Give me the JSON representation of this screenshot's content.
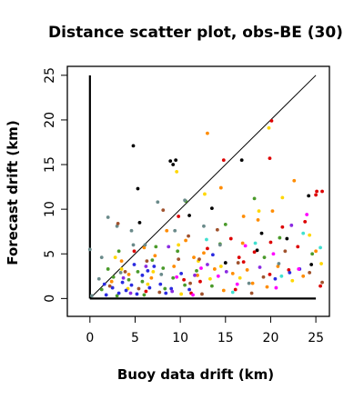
{
  "chart_data": {
    "type": "scatter",
    "title": "Distance scatter plot, obs-BE (30)",
    "xlabel": "Buoy data drift (km)",
    "ylabel": "Forecast drift (km)",
    "xlim": [
      -2.5,
      26.5
    ],
    "ylim": [
      -2,
      26
    ],
    "xticks": [
      "0",
      "5",
      "10",
      "15",
      "20",
      "25"
    ],
    "yticks": [
      "0",
      "5",
      "10",
      "15",
      "20",
      "25"
    ],
    "grid": false,
    "legend": "none",
    "reference_line": {
      "from": [
        0,
        0
      ],
      "to": [
        25,
        25
      ],
      "color": "#000000"
    },
    "axis_lines": [
      {
        "from": [
          0,
          0
        ],
        "to": [
          0,
          25
        ],
        "color": "#000000"
      },
      {
        "from": [
          0,
          0
        ],
        "to": [
          25,
          0
        ],
        "color": "#000000"
      }
    ],
    "points": [
      {
        "x": 4.8,
        "y": 17.1,
        "c": "#000000"
      },
      {
        "x": 8.9,
        "y": 15.4,
        "c": "#000000"
      },
      {
        "x": 9.5,
        "y": 15.5,
        "c": "#000000"
      },
      {
        "x": 9.2,
        "y": 15.0,
        "c": "#000000"
      },
      {
        "x": 5.3,
        "y": 12.3,
        "c": "#000000"
      },
      {
        "x": 16.8,
        "y": 15.5,
        "c": "#000000"
      },
      {
        "x": 24.2,
        "y": 11.5,
        "c": "#000000"
      },
      {
        "x": 19.0,
        "y": 7.3,
        "c": "#000000"
      },
      {
        "x": 21.8,
        "y": 6.7,
        "c": "#000000"
      },
      {
        "x": 5.5,
        "y": 8.5,
        "c": "#000000"
      },
      {
        "x": 11.0,
        "y": 9.3,
        "c": "#000000"
      },
      {
        "x": 24.5,
        "y": 3.8,
        "c": "#000000"
      },
      {
        "x": 13.5,
        "y": 10.1,
        "c": "#000000"
      },
      {
        "x": 15.0,
        "y": 4.0,
        "c": "#000000"
      },
      {
        "x": 18.5,
        "y": 5.4,
        "c": "#000000"
      },
      {
        "x": 20.0,
        "y": 6.3,
        "c": "#dd0000"
      },
      {
        "x": 19.9,
        "y": 15.7,
        "c": "#dd0000"
      },
      {
        "x": 20.1,
        "y": 19.9,
        "c": "#dd0000"
      },
      {
        "x": 14.8,
        "y": 15.5,
        "c": "#dd0000"
      },
      {
        "x": 25.1,
        "y": 12.0,
        "c": "#dd0000"
      },
      {
        "x": 25.7,
        "y": 12.0,
        "c": "#dd0000"
      },
      {
        "x": 25.0,
        "y": 11.6,
        "c": "#dd0000"
      },
      {
        "x": 21.3,
        "y": 8.0,
        "c": "#dd0000"
      },
      {
        "x": 23.0,
        "y": 5.8,
        "c": "#dd0000"
      },
      {
        "x": 19.9,
        "y": 2.7,
        "c": "#dd0000"
      },
      {
        "x": 16.5,
        "y": 4.6,
        "c": "#dd0000"
      },
      {
        "x": 18.2,
        "y": 5.2,
        "c": "#dd0000"
      },
      {
        "x": 15.6,
        "y": 6.7,
        "c": "#dd0000"
      },
      {
        "x": 17.0,
        "y": 4.1,
        "c": "#dd0000"
      },
      {
        "x": 10.4,
        "y": 2.1,
        "c": "#dd0000"
      },
      {
        "x": 11.2,
        "y": 0.6,
        "c": "#dd0000"
      },
      {
        "x": 12.2,
        "y": 1.9,
        "c": "#dd0000"
      },
      {
        "x": 16.1,
        "y": 1.0,
        "c": "#dd0000"
      },
      {
        "x": 25.5,
        "y": 1.4,
        "c": "#dd0000"
      },
      {
        "x": 22.0,
        "y": 3.2,
        "c": "#dd0000"
      },
      {
        "x": 9.8,
        "y": 9.2,
        "c": "#dd0000"
      },
      {
        "x": 4.9,
        "y": 5.3,
        "c": "#dd0000"
      },
      {
        "x": 6.2,
        "y": 0.8,
        "c": "#dd0000"
      },
      {
        "x": 23.8,
        "y": 8.6,
        "c": "#dd0000"
      },
      {
        "x": 13.0,
        "y": 5.6,
        "c": "#dd0000"
      },
      {
        "x": 17.0,
        "y": 9.2,
        "c": "#ff8c00"
      },
      {
        "x": 13.0,
        "y": 18.5,
        "c": "#ff8c00"
      },
      {
        "x": 22.6,
        "y": 13.2,
        "c": "#ff8c00"
      },
      {
        "x": 14.5,
        "y": 12.4,
        "c": "#ff8c00"
      },
      {
        "x": 20.2,
        "y": 9.8,
        "c": "#ff8c00"
      },
      {
        "x": 18.6,
        "y": 8.8,
        "c": "#ff8c00"
      },
      {
        "x": 8.5,
        "y": 7.6,
        "c": "#ff8c00"
      },
      {
        "x": 10.6,
        "y": 6.5,
        "c": "#ff8c00"
      },
      {
        "x": 11.5,
        "y": 4.6,
        "c": "#ff8c00"
      },
      {
        "x": 12.6,
        "y": 5.1,
        "c": "#ff8c00"
      },
      {
        "x": 6.0,
        "y": 5.7,
        "c": "#ff8c00"
      },
      {
        "x": 3.5,
        "y": 4.2,
        "c": "#ff8c00"
      },
      {
        "x": 7.2,
        "y": 4.8,
        "c": "#ff8c00"
      },
      {
        "x": 13.8,
        "y": 3.3,
        "c": "#ff8c00"
      },
      {
        "x": 15.8,
        "y": 2.8,
        "c": "#ff8c00"
      },
      {
        "x": 18.0,
        "y": 1.7,
        "c": "#ff8c00"
      },
      {
        "x": 20.8,
        "y": 3.6,
        "c": "#ff8c00"
      },
      {
        "x": 23.6,
        "y": 2.5,
        "c": "#ff8c00"
      },
      {
        "x": 2.4,
        "y": 1.9,
        "c": "#ff8c00"
      },
      {
        "x": 4.3,
        "y": 2.7,
        "c": "#ff8c00"
      },
      {
        "x": 9.3,
        "y": 3.6,
        "c": "#ff8c00"
      },
      {
        "x": 11.9,
        "y": 2.6,
        "c": "#ff8c00"
      },
      {
        "x": 16.9,
        "y": 6.2,
        "c": "#ff8c00"
      },
      {
        "x": 25.0,
        "y": 5.3,
        "c": "#ff8c00"
      },
      {
        "x": 14.8,
        "y": 0.9,
        "c": "#ff8c00"
      },
      {
        "x": 17.4,
        "y": 3.2,
        "c": "#ff8c00"
      },
      {
        "x": 6.8,
        "y": 2.3,
        "c": "#ff8c00"
      },
      {
        "x": 19.6,
        "y": 1.3,
        "c": "#ff8c00"
      },
      {
        "x": 9.6,
        "y": 14.2,
        "c": "#ffd700"
      },
      {
        "x": 12.7,
        "y": 11.7,
        "c": "#ffd700"
      },
      {
        "x": 21.3,
        "y": 11.3,
        "c": "#ffd700"
      },
      {
        "x": 19.8,
        "y": 19.1,
        "c": "#ffd700"
      },
      {
        "x": 18.7,
        "y": 9.8,
        "c": "#ffd700"
      },
      {
        "x": 9.8,
        "y": 6.0,
        "c": "#ffd700"
      },
      {
        "x": 14.5,
        "y": 3.6,
        "c": "#ffd700"
      },
      {
        "x": 7.0,
        "y": 3.0,
        "c": "#ffd700"
      },
      {
        "x": 4.2,
        "y": 1.1,
        "c": "#ffd700"
      },
      {
        "x": 13.3,
        "y": 2.2,
        "c": "#ffd700"
      },
      {
        "x": 10.1,
        "y": 0.5,
        "c": "#ffd700"
      },
      {
        "x": 16.6,
        "y": 2.3,
        "c": "#ffd700"
      },
      {
        "x": 2.8,
        "y": 4.6,
        "c": "#ffd700"
      },
      {
        "x": 22.4,
        "y": 2.0,
        "c": "#ffd700"
      },
      {
        "x": 25.6,
        "y": 3.9,
        "c": "#ffd700"
      },
      {
        "x": 6.4,
        "y": 1.6,
        "c": "#ffd700"
      },
      {
        "x": 12.0,
        "y": 4.2,
        "c": "#ffd700"
      },
      {
        "x": 24.3,
        "y": 7.1,
        "c": "#ffd700"
      },
      {
        "x": 3.5,
        "y": 3.3,
        "c": "#ffd700"
      },
      {
        "x": 8.1,
        "y": 3.4,
        "c": "#4a9a2a"
      },
      {
        "x": 10.6,
        "y": 10.9,
        "c": "#4a9a2a"
      },
      {
        "x": 15.0,
        "y": 8.3,
        "c": "#4a9a2a"
      },
      {
        "x": 18.2,
        "y": 11.2,
        "c": "#4a9a2a"
      },
      {
        "x": 9.7,
        "y": 5.3,
        "c": "#4a9a2a"
      },
      {
        "x": 2.0,
        "y": 3.3,
        "c": "#4a9a2a"
      },
      {
        "x": 3.2,
        "y": 5.3,
        "c": "#4a9a2a"
      },
      {
        "x": 5.3,
        "y": 3.0,
        "c": "#4a9a2a"
      },
      {
        "x": 6.9,
        "y": 4.3,
        "c": "#4a9a2a"
      },
      {
        "x": 8.3,
        "y": 1.1,
        "c": "#4a9a2a"
      },
      {
        "x": 4.3,
        "y": 2.1,
        "c": "#4a9a2a"
      },
      {
        "x": 1.3,
        "y": 1.0,
        "c": "#4a9a2a"
      },
      {
        "x": 11.8,
        "y": 3.1,
        "c": "#4a9a2a"
      },
      {
        "x": 13.5,
        "y": 1.4,
        "c": "#4a9a2a"
      },
      {
        "x": 3.0,
        "y": 0.3,
        "c": "#4a9a2a"
      },
      {
        "x": 6.0,
        "y": 0.4,
        "c": "#4a9a2a"
      },
      {
        "x": 9.2,
        "y": 2.3,
        "c": "#4a9a2a"
      },
      {
        "x": 14.4,
        "y": 6.1,
        "c": "#4a9a2a"
      },
      {
        "x": 19.3,
        "y": 4.6,
        "c": "#4a9a2a"
      },
      {
        "x": 21.0,
        "y": 6.8,
        "c": "#4a9a2a"
      },
      {
        "x": 24.6,
        "y": 5.0,
        "c": "#4a9a2a"
      },
      {
        "x": 7.3,
        "y": 5.8,
        "c": "#4a9a2a"
      },
      {
        "x": 2.6,
        "y": 2.4,
        "c": "#4a9a2a"
      },
      {
        "x": 5.8,
        "y": 1.9,
        "c": "#4a9a2a"
      },
      {
        "x": 10.5,
        "y": 1.5,
        "c": "#4a9a2a"
      },
      {
        "x": 4.9,
        "y": 3.8,
        "c": "#2a2ae0"
      },
      {
        "x": 5.8,
        "y": 2.6,
        "c": "#2a2ae0"
      },
      {
        "x": 7.1,
        "y": 3.6,
        "c": "#2a2ae0"
      },
      {
        "x": 3.2,
        "y": 0.6,
        "c": "#2a2ae0"
      },
      {
        "x": 4.0,
        "y": 0.9,
        "c": "#2a2ae0"
      },
      {
        "x": 2.5,
        "y": 1.2,
        "c": "#2a2ae0"
      },
      {
        "x": 7.8,
        "y": 1.6,
        "c": "#2a2ae0"
      },
      {
        "x": 9.0,
        "y": 1.1,
        "c": "#2a2ae0"
      },
      {
        "x": 6.4,
        "y": 3.1,
        "c": "#2a2ae0"
      },
      {
        "x": 4.6,
        "y": 1.5,
        "c": "#2a2ae0"
      },
      {
        "x": 1.8,
        "y": 0.4,
        "c": "#2a2ae0"
      },
      {
        "x": 5.2,
        "y": 0.5,
        "c": "#2a2ae0"
      },
      {
        "x": 8.4,
        "y": 0.6,
        "c": "#2a2ae0"
      },
      {
        "x": 10.1,
        "y": 2.8,
        "c": "#2a2ae0"
      },
      {
        "x": 11.0,
        "y": 1.0,
        "c": "#2a2ae0"
      },
      {
        "x": 3.6,
        "y": 1.8,
        "c": "#2a2ae0"
      },
      {
        "x": 6.6,
        "y": 1.2,
        "c": "#2a2ae0"
      },
      {
        "x": 13.6,
        "y": 4.9,
        "c": "#2a2ae0"
      },
      {
        "x": 20.5,
        "y": 2.2,
        "c": "#2a2ae0"
      },
      {
        "x": 23.2,
        "y": 3.3,
        "c": "#2a2ae0"
      },
      {
        "x": 22.1,
        "y": 2.9,
        "c": "#2a2ae0"
      },
      {
        "x": 1.6,
        "y": 1.6,
        "c": "#2a2ae0"
      },
      {
        "x": 2.0,
        "y": 9.1,
        "c": "#6a8a8a"
      },
      {
        "x": 3.0,
        "y": 8.1,
        "c": "#6a8a8a"
      },
      {
        "x": 4.6,
        "y": 7.6,
        "c": "#6a8a8a"
      },
      {
        "x": 4.8,
        "y": 6.0,
        "c": "#6a8a8a"
      },
      {
        "x": 7.5,
        "y": 10.8,
        "c": "#6a8a8a"
      },
      {
        "x": 10.5,
        "y": 11.0,
        "c": "#6a8a8a"
      },
      {
        "x": 12.6,
        "y": 8.1,
        "c": "#6a8a8a"
      },
      {
        "x": 0.0,
        "y": 5.5,
        "c": "#6a8a8a"
      },
      {
        "x": 1.3,
        "y": 4.6,
        "c": "#6a8a8a"
      },
      {
        "x": 3.4,
        "y": 2.9,
        "c": "#6a8a8a"
      },
      {
        "x": 6.1,
        "y": 6.0,
        "c": "#6a8a8a"
      },
      {
        "x": 9.4,
        "y": 7.6,
        "c": "#6a8a8a"
      },
      {
        "x": 14.4,
        "y": 6.0,
        "c": "#6a8a8a"
      },
      {
        "x": 17.6,
        "y": 1.7,
        "c": "#6a8a8a"
      },
      {
        "x": 20.9,
        "y": 3.9,
        "c": "#6a8a8a"
      },
      {
        "x": 1.0,
        "y": 2.2,
        "c": "#6a8a8a"
      },
      {
        "x": 7.9,
        "y": 2.7,
        "c": "#6a8a8a"
      },
      {
        "x": 0.2,
        "y": 0.3,
        "c": "#6a8a8a"
      },
      {
        "x": 3.1,
        "y": 8.4,
        "c": "#a0522d"
      },
      {
        "x": 8.1,
        "y": 9.9,
        "c": "#a0522d"
      },
      {
        "x": 10.9,
        "y": 7.0,
        "c": "#a0522d"
      },
      {
        "x": 12.1,
        "y": 4.4,
        "c": "#a0522d"
      },
      {
        "x": 14.1,
        "y": 7.7,
        "c": "#a0522d"
      },
      {
        "x": 6.3,
        "y": 4.2,
        "c": "#a0522d"
      },
      {
        "x": 3.9,
        "y": 3.0,
        "c": "#a0522d"
      },
      {
        "x": 2.2,
        "y": 1.4,
        "c": "#a0522d"
      },
      {
        "x": 5.4,
        "y": 1.1,
        "c": "#a0522d"
      },
      {
        "x": 9.8,
        "y": 4.4,
        "c": "#a0522d"
      },
      {
        "x": 16.4,
        "y": 4.0,
        "c": "#a0522d"
      },
      {
        "x": 19.2,
        "y": 2.4,
        "c": "#a0522d"
      },
      {
        "x": 21.6,
        "y": 5.3,
        "c": "#a0522d"
      },
      {
        "x": 24.3,
        "y": 2.9,
        "c": "#a0522d"
      },
      {
        "x": 25.7,
        "y": 1.8,
        "c": "#a0522d"
      },
      {
        "x": 11.1,
        "y": 1.7,
        "c": "#a0522d"
      },
      {
        "x": 7.7,
        "y": 0.7,
        "c": "#a0522d"
      },
      {
        "x": 12.4,
        "y": 0.5,
        "c": "#a0522d"
      },
      {
        "x": 17.9,
        "y": 0.6,
        "c": "#a0522d"
      },
      {
        "x": 8.7,
        "y": 5.8,
        "c": "#8a2be2"
      },
      {
        "x": 11.6,
        "y": 2.6,
        "c": "#8a2be2"
      },
      {
        "x": 15.1,
        "y": 3.0,
        "c": "#8a2be2"
      },
      {
        "x": 6.2,
        "y": 3.6,
        "c": "#8a2be2"
      },
      {
        "x": 4.5,
        "y": 0.6,
        "c": "#8a2be2"
      },
      {
        "x": 3.7,
        "y": 2.3,
        "c": "#8a2be2"
      },
      {
        "x": 18.8,
        "y": 3.5,
        "c": "#8a2be2"
      },
      {
        "x": 22.3,
        "y": 8.2,
        "c": "#8a2be2"
      },
      {
        "x": 9.1,
        "y": 0.8,
        "c": "#8a2be2"
      },
      {
        "x": 13.0,
        "y": 3.8,
        "c": "#8a2be2"
      },
      {
        "x": 24.0,
        "y": 9.4,
        "c": "#ff00ff"
      },
      {
        "x": 17.2,
        "y": 5.9,
        "c": "#ff00ff"
      },
      {
        "x": 20.3,
        "y": 5.0,
        "c": "#ff00ff"
      },
      {
        "x": 23.1,
        "y": 3.3,
        "c": "#ff00ff"
      },
      {
        "x": 12.3,
        "y": 3.4,
        "c": "#ff00ff"
      },
      {
        "x": 9.6,
        "y": 2.4,
        "c": "#ff00ff"
      },
      {
        "x": 16.3,
        "y": 1.6,
        "c": "#ff00ff"
      },
      {
        "x": 11.4,
        "y": 0.4,
        "c": "#ff00ff"
      },
      {
        "x": 20.6,
        "y": 1.2,
        "c": "#ff00ff"
      },
      {
        "x": 14.2,
        "y": 2.5,
        "c": "#ff00ff"
      },
      {
        "x": 23.6,
        "y": 7.3,
        "c": "#40e0d0"
      },
      {
        "x": 25.5,
        "y": 5.7,
        "c": "#40e0d0"
      },
      {
        "x": 18.3,
        "y": 6.2,
        "c": "#40e0d0"
      },
      {
        "x": 21.2,
        "y": 2.5,
        "c": "#40e0d0"
      },
      {
        "x": 15.8,
        "y": 0.7,
        "c": "#40e0d0"
      },
      {
        "x": 12.9,
        "y": 6.6,
        "c": "#40e0d0"
      }
    ]
  }
}
